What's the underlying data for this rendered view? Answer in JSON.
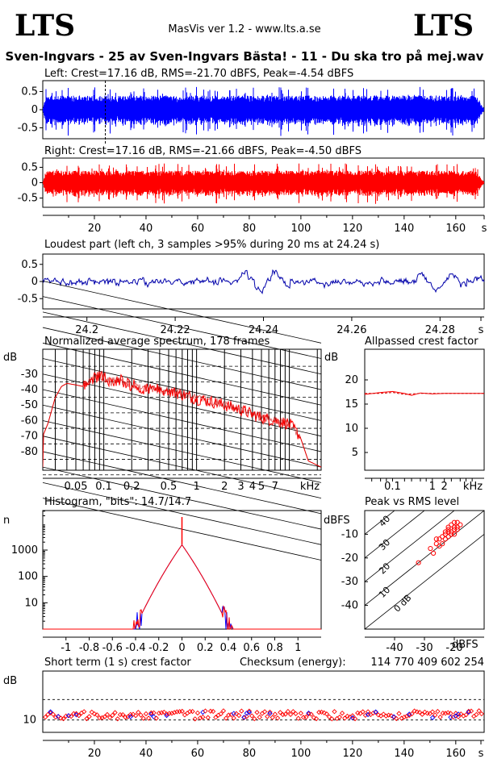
{
  "header": {
    "logo_left": "LTS",
    "logo_right": "LTS",
    "app": "MasVis ver 1.2 - www.lts.a.se",
    "file_title": "Sven-Ingvars - 25 av Sven-Ingvars Bästa! - 11 - Du ska tro på mej.wav"
  },
  "colors": {
    "left": "#0000ff",
    "right": "#ff0000",
    "loudest": "#0000aa",
    "axis": "#000000"
  },
  "chart_data": [
    {
      "id": "left",
      "type": "line",
      "title": "Left: Crest=17.16 dB, RMS=-21.70 dBFS, Peak=-4.54 dBFS",
      "yticks": [
        "0.5",
        "0",
        "-0.5"
      ],
      "ylim": [
        -0.8,
        0.8
      ],
      "xlim": [
        0,
        171
      ],
      "marker_x": 24.24,
      "envelope_amp": 0.3
    },
    {
      "id": "right",
      "type": "line",
      "title": "Right: Crest=17.16 dB, RMS=-21.66 dBFS, Peak=-4.50 dBFS",
      "yticks": [
        "0.5",
        "0",
        "-0.5"
      ],
      "ylim": [
        -0.8,
        0.8
      ],
      "xlim": [
        0,
        171
      ],
      "xticks": [
        "20",
        "40",
        "60",
        "80",
        "100",
        "120",
        "140",
        "160",
        "s"
      ],
      "envelope_amp": 0.3
    },
    {
      "id": "loudest",
      "type": "line",
      "title": "Loudest part (left  ch, 3 samples >95% during 20 ms at 24.24 s)",
      "yticks": [
        "0.5",
        "0",
        "-0.5"
      ],
      "ylim": [
        -0.8,
        0.8
      ],
      "xlim": [
        24.19,
        24.29
      ],
      "xticks": [
        "24.2",
        "24.22",
        "24.24",
        "24.26",
        "24.28",
        "s"
      ]
    },
    {
      "id": "spectrum",
      "type": "line",
      "title": "Normalized average spectrum, 178 frames",
      "ylabel": "dB",
      "yticks": [
        "-30",
        "-40",
        "-50",
        "-60",
        "-70",
        "-80"
      ],
      "ylim": [
        -92,
        -14
      ],
      "xticks": [
        "0.05",
        "0.1",
        "0.2",
        "0.5",
        "1",
        "2",
        "3",
        "4",
        "5",
        "7",
        "kHz"
      ],
      "xlim_khz": [
        0.022,
        22
      ],
      "points": [
        [
          0.022,
          -70
        ],
        [
          0.025,
          -62
        ],
        [
          0.03,
          -45
        ],
        [
          0.035,
          -38
        ],
        [
          0.04,
          -36
        ],
        [
          0.05,
          -37
        ],
        [
          0.06,
          -38
        ],
        [
          0.07,
          -36
        ],
        [
          0.08,
          -32
        ],
        [
          0.1,
          -32
        ],
        [
          0.12,
          -35
        ],
        [
          0.15,
          -34
        ],
        [
          0.2,
          -37
        ],
        [
          0.3,
          -40
        ],
        [
          0.4,
          -40
        ],
        [
          0.5,
          -41
        ],
        [
          0.7,
          -43
        ],
        [
          1,
          -46
        ],
        [
          1.5,
          -48
        ],
        [
          2,
          -50
        ],
        [
          3,
          -53
        ],
        [
          4,
          -56
        ],
        [
          5,
          -58
        ],
        [
          7,
          -60
        ],
        [
          10,
          -62
        ],
        [
          13,
          -70
        ],
        [
          16,
          -86
        ],
        [
          22,
          -90
        ]
      ]
    },
    {
      "id": "crest_allpass",
      "type": "line",
      "title": "Allpassed crest factor",
      "ylabel": "dB",
      "yticks": [
        "20",
        "15",
        "10",
        "5"
      ],
      "ylim": [
        0,
        25
      ],
      "xticks": [
        "0.1",
        "1",
        "2",
        "kHz"
      ],
      "xlim_khz": [
        0.02,
        20
      ],
      "points": [
        [
          0.02,
          17.0
        ],
        [
          0.05,
          17.4
        ],
        [
          0.1,
          17.6
        ],
        [
          0.2,
          17.2
        ],
        [
          0.3,
          16.8
        ],
        [
          0.5,
          17.3
        ],
        [
          1,
          17.1
        ],
        [
          2,
          17.2
        ],
        [
          20,
          17.2
        ]
      ],
      "points2": [
        [
          0.02,
          17.2
        ],
        [
          0.05,
          17.2
        ],
        [
          0.1,
          17.4
        ],
        [
          0.2,
          17.0
        ],
        [
          0.3,
          17.1
        ],
        [
          0.5,
          17.2
        ],
        [
          1,
          17.2
        ],
        [
          20,
          17.2
        ]
      ]
    },
    {
      "id": "histogram",
      "type": "line",
      "title": "Histogram, \"bits\": 14.7/14.7",
      "ylabel": "n",
      "yticks": [
        "1000",
        "100",
        "10"
      ],
      "xticks": [
        "-1",
        "-0.8",
        "-0.6",
        "-0.4",
        "-0.2",
        "0",
        "0.2",
        "0.4",
        "0.6",
        "0.8",
        "1"
      ],
      "xlim": [
        -1.2,
        1.2
      ],
      "ylim_log": [
        0,
        4.5
      ],
      "peak_log": 3.2,
      "width": 0.12
    },
    {
      "id": "peak_rms",
      "type": "scatter",
      "title": "Peak vs RMS level",
      "ylabel": "dBFS",
      "xlabel": "dBFS",
      "yticks": [
        "-10",
        "-20",
        "-30",
        "-40"
      ],
      "xticks": [
        "-40",
        "-30",
        "-20"
      ],
      "xlim": [
        -50,
        -10
      ],
      "ylim": [
        -50,
        0
      ],
      "diag_labels": [
        "40",
        "30",
        "20",
        "10",
        "0 dB"
      ],
      "points": [
        [
          -32,
          -22
        ],
        [
          -28,
          -16
        ],
        [
          -26,
          -14
        ],
        [
          -25,
          -12
        ],
        [
          -24,
          -11
        ],
        [
          -23,
          -10
        ],
        [
          -22,
          -8
        ],
        [
          -21,
          -6
        ],
        [
          -20,
          -5
        ],
        [
          -19,
          -7
        ],
        [
          -22,
          -9
        ],
        [
          -23,
          -12
        ],
        [
          -21,
          -9
        ],
        [
          -20,
          -8
        ],
        [
          -18,
          -6
        ],
        [
          -24,
          -14
        ],
        [
          -22,
          -11
        ],
        [
          -19,
          -5
        ],
        [
          -20,
          -7
        ],
        [
          -21,
          -10
        ],
        [
          -25,
          -15
        ],
        [
          -26,
          -12
        ],
        [
          -27,
          -18
        ],
        [
          -23,
          -9
        ],
        [
          -22,
          -7
        ],
        [
          -19,
          -8
        ],
        [
          -20,
          -10
        ]
      ]
    },
    {
      "id": "short_crest",
      "type": "scatter",
      "title": "Short term (1 s) crest factor",
      "checksum_label": "Checksum (energy):",
      "checksum": "114 770 409 602 254",
      "ylabel": "dB",
      "yticks": [
        "10"
      ],
      "ylim": [
        0,
        30
      ],
      "xlim": [
        0,
        171
      ],
      "xticks": [
        "20",
        "40",
        "60",
        "80",
        "100",
        "120",
        "140",
        "160",
        "s"
      ],
      "ref_lines": [
        10,
        20
      ],
      "mean": 12.5
    }
  ]
}
